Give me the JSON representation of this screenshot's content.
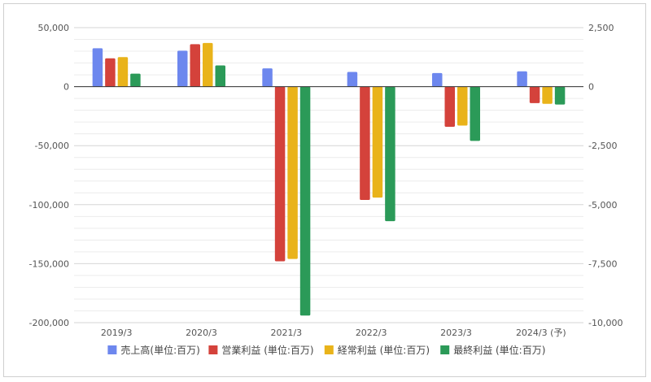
{
  "chart_data": {
    "type": "bar",
    "categories": [
      "2019/3",
      "2020/3",
      "2021/3",
      "2022/3",
      "2023/3",
      "2024/3 (予)"
    ],
    "series": [
      {
        "name": "売上高(単位:百万)",
        "axis": "left",
        "color": "#6d87ee",
        "values": [
          32500,
          30500,
          15500,
          12500,
          11500,
          13000
        ]
      },
      {
        "name": "営業利益 (単位:百万)",
        "axis": "right",
        "color": "#d4423b",
        "values": [
          1200,
          1800,
          -7400,
          -4800,
          -1700,
          -700
        ]
      },
      {
        "name": "経常利益 (単位:百万)",
        "axis": "right",
        "color": "#e9b31a",
        "values": [
          1250,
          1850,
          -7300,
          -4700,
          -1650,
          -730
        ]
      },
      {
        "name": "最終利益 (単位:百万)",
        "axis": "right",
        "color": "#2b9a58",
        "values": [
          550,
          900,
          -9700,
          -5700,
          -2300,
          -760
        ]
      }
    ],
    "y_left": {
      "ylim": [
        -200000,
        50000
      ],
      "ticks": [
        "50,000",
        "0",
        "-50,000",
        "-100,000",
        "-150,000",
        "-200,000"
      ],
      "tick_values": [
        50000,
        0,
        -50000,
        -100000,
        -150000,
        -200000
      ]
    },
    "y_right": {
      "ylim": [
        -10000,
        2500
      ],
      "ticks": [
        "2,500",
        "0",
        "-2,500",
        "-5,000",
        "-7,500",
        "-10,000"
      ],
      "tick_values": [
        2500,
        0,
        -2500,
        -5000,
        -7500,
        -10000
      ]
    },
    "grid": true,
    "legend_position": "bottom"
  }
}
